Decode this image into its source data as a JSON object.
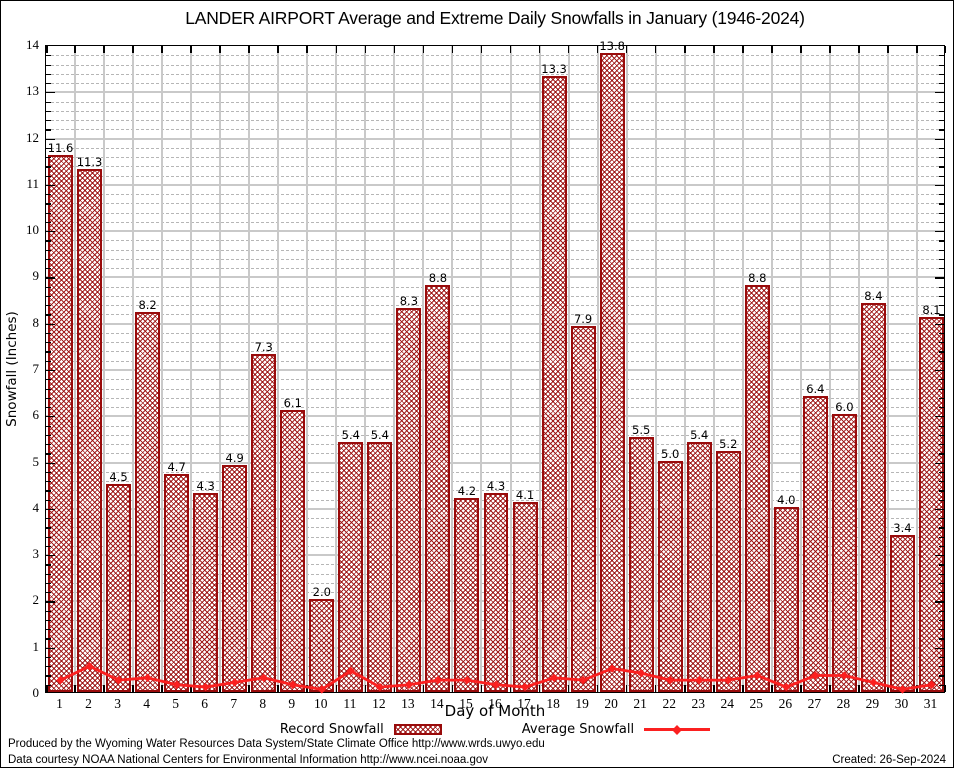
{
  "chart_data": {
    "type": "bar",
    "title": "LANDER AIRPORT Average and Extreme Daily Snowfalls in January (1946-2024)",
    "xlabel": "Day of Month",
    "ylabel": "Snowfall (Inches)",
    "ylim": [
      0,
      14
    ],
    "y_tick_step": 1,
    "y_minor_step": 0.2,
    "grid": true,
    "legend_position": "bottom",
    "categories": [
      1,
      2,
      3,
      4,
      5,
      6,
      7,
      8,
      9,
      10,
      11,
      12,
      13,
      14,
      15,
      16,
      17,
      18,
      19,
      20,
      21,
      22,
      23,
      24,
      25,
      26,
      27,
      28,
      29,
      30,
      31
    ],
    "series": [
      {
        "name": "Record Snowfall",
        "type": "bar",
        "color": "#990b0b",
        "values": [
          11.6,
          11.3,
          4.5,
          8.2,
          4.7,
          4.3,
          4.9,
          7.3,
          6.1,
          2.0,
          5.4,
          5.4,
          8.3,
          8.8,
          4.2,
          4.3,
          4.1,
          13.3,
          7.9,
          13.8,
          5.5,
          5.0,
          5.4,
          5.2,
          8.8,
          4.0,
          6.4,
          6.0,
          8.4,
          3.4,
          8.1
        ]
      },
      {
        "name": "Average Snowfall",
        "type": "line",
        "color": "#fb2020",
        "values": [
          0.3,
          0.6,
          0.3,
          0.35,
          0.2,
          0.15,
          0.25,
          0.35,
          0.2,
          0.1,
          0.5,
          0.15,
          0.2,
          0.3,
          0.3,
          0.2,
          0.15,
          0.35,
          0.3,
          0.55,
          0.45,
          0.3,
          0.3,
          0.3,
          0.4,
          0.15,
          0.4,
          0.4,
          0.25,
          0.1,
          0.2
        ]
      }
    ],
    "grid_color_major": "#c9c9c9",
    "grid_color_minor": "#b6b6b6"
  },
  "footer": {
    "line1": "Produced by the Wyoming Water Resources Data System/State Climate Office http://www.wrds.uwyo.edu",
    "line2": "Data courtesy NOAA National Centers for Environmental Information http://www.ncei.noaa.gov",
    "created": "Created: 26-Sep-2024"
  }
}
